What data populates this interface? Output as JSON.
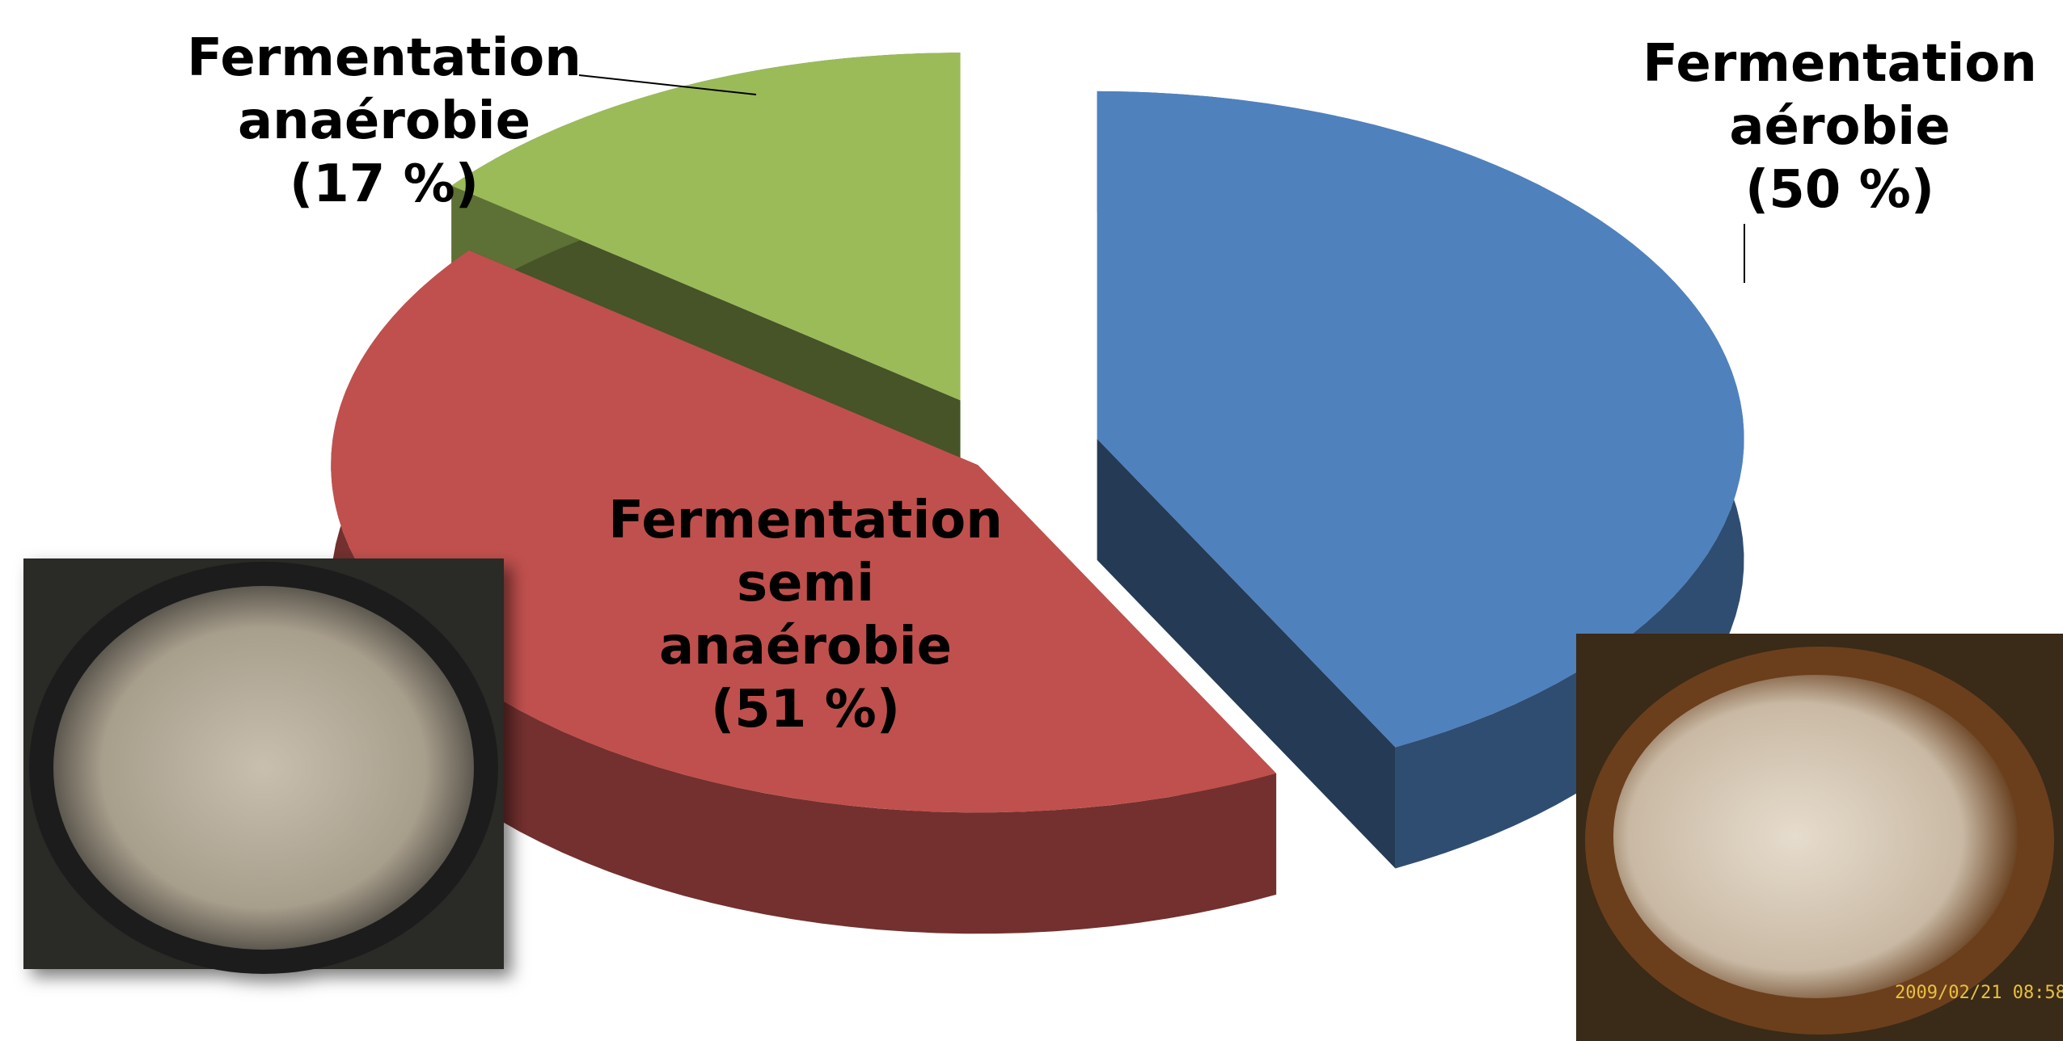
{
  "chart_data": {
    "type": "pie3d",
    "categories": [
      "Fermentation\naérobie",
      "Fermentation\nsemi\nanaérobie",
      "Fermentation\nanaérobie"
    ],
    "values": [
      50,
      51,
      17
    ],
    "value_labels": [
      "(50 %)",
      "(51 %)",
      "(17 %)"
    ],
    "colors": [
      "#4f81bd",
      "#c0504d",
      "#9bbb59"
    ]
  },
  "photo_timestamp": "2009/02/21 08:58"
}
